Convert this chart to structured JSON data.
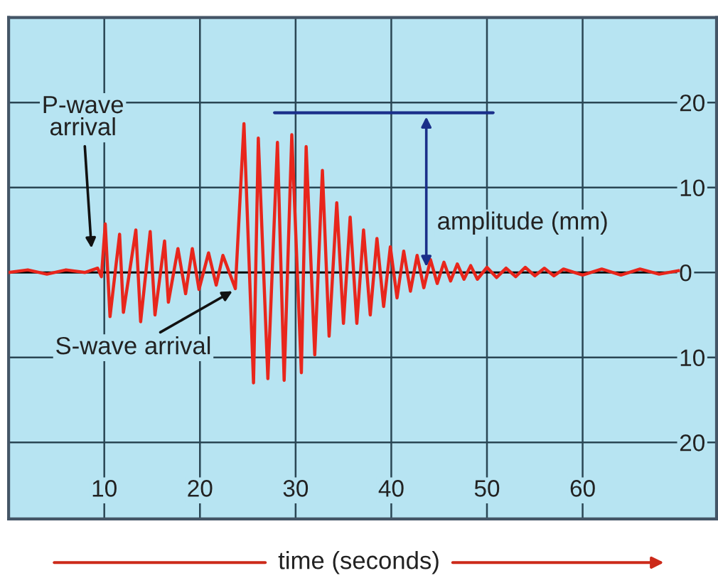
{
  "chart_data": {
    "type": "line",
    "xlabel": "time (seconds)",
    "x": [
      0,
      2,
      4,
      6,
      8,
      9.3,
      9.7,
      10.1,
      10.6,
      11.6,
      12.0,
      13.3,
      13.8,
      14.8,
      15.3,
      16.3,
      16.7,
      17.7,
      18.5,
      19.2,
      19.9,
      20.9,
      21.7,
      22.4,
      23.7,
      24.6,
      25.6,
      26.1,
      27.1,
      28.1,
      28.8,
      29.6,
      30.6,
      31.1,
      32.0,
      32.8,
      33.5,
      34.3,
      35.0,
      35.7,
      36.4,
      37.1,
      37.8,
      38.5,
      39.2,
      39.9,
      40.6,
      41.3,
      42.0,
      42.7,
      43.4,
      44.1,
      44.8,
      45.5,
      46.2,
      46.9,
      47.6,
      48.3,
      49,
      50,
      51,
      52,
      53,
      54,
      55,
      56,
      57,
      58,
      60,
      62,
      64,
      66,
      68,
      70
    ],
    "series": [
      {
        "color": "#e8261c",
        "values": [
          0,
          0.3,
          -0.2,
          0.3,
          0,
          0.5,
          -0.5,
          5.7,
          -5.2,
          4.5,
          -4.7,
          5,
          -5.8,
          4.8,
          -5,
          3.7,
          -3.5,
          2.8,
          -2.5,
          2.8,
          -2,
          2.3,
          -1.5,
          2,
          -1.9,
          17.5,
          -13,
          15.8,
          -12.5,
          15.3,
          -12.7,
          16.2,
          -11.8,
          14.8,
          -9.7,
          12,
          -7.5,
          8.2,
          -6,
          6.5,
          -6,
          5,
          -5,
          4,
          -4,
          3,
          -3,
          2.5,
          -2.2,
          2,
          -1.8,
          1.5,
          -1.3,
          1.2,
          -1,
          1,
          -0.8,
          0.8,
          -0.8,
          0.6,
          -0.6,
          0.5,
          -0.5,
          0.6,
          -0.4,
          0.5,
          -0.4,
          0.4,
          -0.3,
          0.4,
          -0.3,
          0.4,
          -0.2,
          0.2
        ]
      }
    ],
    "xlim": [
      0,
      74
    ],
    "ylim": [
      -29,
      30
    ],
    "xticks": [
      10,
      20,
      30,
      40,
      50,
      60
    ],
    "yticks": [
      {
        "value": -20,
        "label": "20"
      },
      {
        "value": -10,
        "label": "10"
      },
      0,
      10,
      20
    ],
    "grid": true,
    "marker": "none",
    "line_style": "solid",
    "ref_lines": [
      {
        "axis": "y",
        "value": 0,
        "color": "#000000"
      }
    ],
    "annotations": [
      "P-wave\narrival",
      {
        "text": "S-wave arrival",
        "x": 23.4,
        "y": -2.2
      },
      "amplitude (mm)"
    ]
  }
}
